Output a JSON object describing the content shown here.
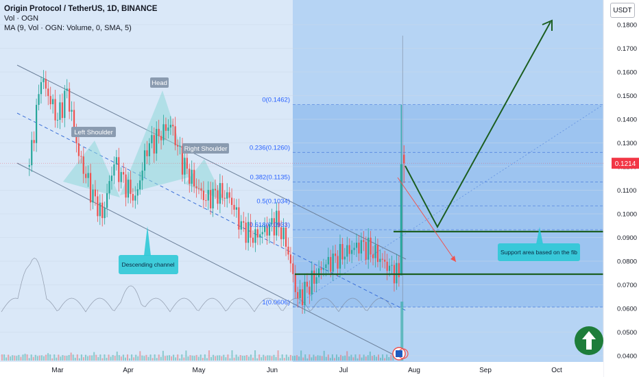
{
  "header": {
    "title": "Origin Protocol / TetherUS, 1D, BINANCE",
    "line2": "Vol · OGN",
    "line3": "MA (9, Vol · OGN: Volume, 0, SMA, 5)"
  },
  "currency_badge": "USDT",
  "colors": {
    "background": "#ffffff",
    "chart_bg": "#dae8f8",
    "projection_bg": "#a9cdf3",
    "up_candle": "#26a69a",
    "down_candle": "#ef5350",
    "pattern_fill": "#8fd7d9",
    "callout": "#2ec9d6",
    "drawing_green": "#1b5e20",
    "arrow_red": "#ef5350",
    "price_tag": "#f23645",
    "badge_green": "#1e7d3a"
  },
  "chart_data": {
    "type": "candlestick",
    "symbol": "OGN/USDT",
    "interval": "1D",
    "y_axis": {
      "min": 0.035,
      "max": 0.185,
      "scale": "linear",
      "ticks": [
        "0.1800",
        "0.1700",
        "0.1600",
        "0.1500",
        "0.1400",
        "0.1300",
        "0.1200",
        "0.1100",
        "0.1000",
        "0.0900",
        "0.0800",
        "0.0700",
        "0.0600",
        "0.0500",
        "0.0400"
      ]
    },
    "x_axis": {
      "ticks": [
        "Mar",
        "Apr",
        "May",
        "Jun",
        "Jul",
        "Aug",
        "Sep",
        "Oct"
      ]
    },
    "last_price": "0.1214",
    "price_path": [
      [
        "Feb 18",
        0.12
      ],
      [
        "Feb 23",
        0.158
      ],
      [
        "Mar 1",
        0.14
      ],
      [
        "Mar 5",
        0.152
      ],
      [
        "Mar 10",
        0.125
      ],
      [
        "Mar 15",
        0.11
      ],
      [
        "Mar 20",
        0.099
      ],
      [
        "Mar 25",
        0.122
      ],
      [
        "Mar 30",
        0.112
      ],
      [
        "Apr 3",
        0.106
      ],
      [
        "Apr 8",
        0.128
      ],
      [
        "Apr 13",
        0.133
      ],
      [
        "Apr 18",
        0.138
      ],
      [
        "Apr 23",
        0.122
      ],
      [
        "Apr 28",
        0.113
      ],
      [
        "May 3",
        0.106
      ],
      [
        "May 8",
        0.109
      ],
      [
        "May 13",
        0.107
      ],
      [
        "May 18",
        0.095
      ],
      [
        "May 23",
        0.09
      ],
      [
        "May 28",
        0.093
      ],
      [
        "Jun 2",
        0.097
      ],
      [
        "Jun 6",
        0.088
      ],
      [
        "Jun 11",
        0.064
      ],
      [
        "Jun 16",
        0.07
      ],
      [
        "Jun 22",
        0.078
      ],
      [
        "Jul 2",
        0.084
      ],
      [
        "Jul 8",
        0.087
      ],
      [
        "Jul 14",
        0.083
      ],
      [
        "Jul 20",
        0.077
      ],
      [
        "Jul 24",
        0.074
      ],
      [
        "Jul 25",
        0.121
      ]
    ],
    "fibonacci": [
      {
        "label": "0(0.1462)",
        "price": 0.1462
      },
      {
        "label": "0.236(0.1260)",
        "price": 0.126
      },
      {
        "label": "0.382(0.1135)",
        "price": 0.1135
      },
      {
        "label": "0.5(0.1034)",
        "price": 0.1034
      },
      {
        "label": "0.618(0.0933)",
        "price": 0.0933
      },
      {
        "label": "1(0.0606)",
        "price": 0.0606
      }
    ],
    "annotations": {
      "head": "Head",
      "left_shoulder": "Left Shoulder",
      "right_shoulder": "Right Shoulder",
      "channel": "Descending channel",
      "support": "Support area based on the fib"
    },
    "support_levels": [
      0.0925,
      0.0745
    ],
    "projection_target": 0.18
  }
}
